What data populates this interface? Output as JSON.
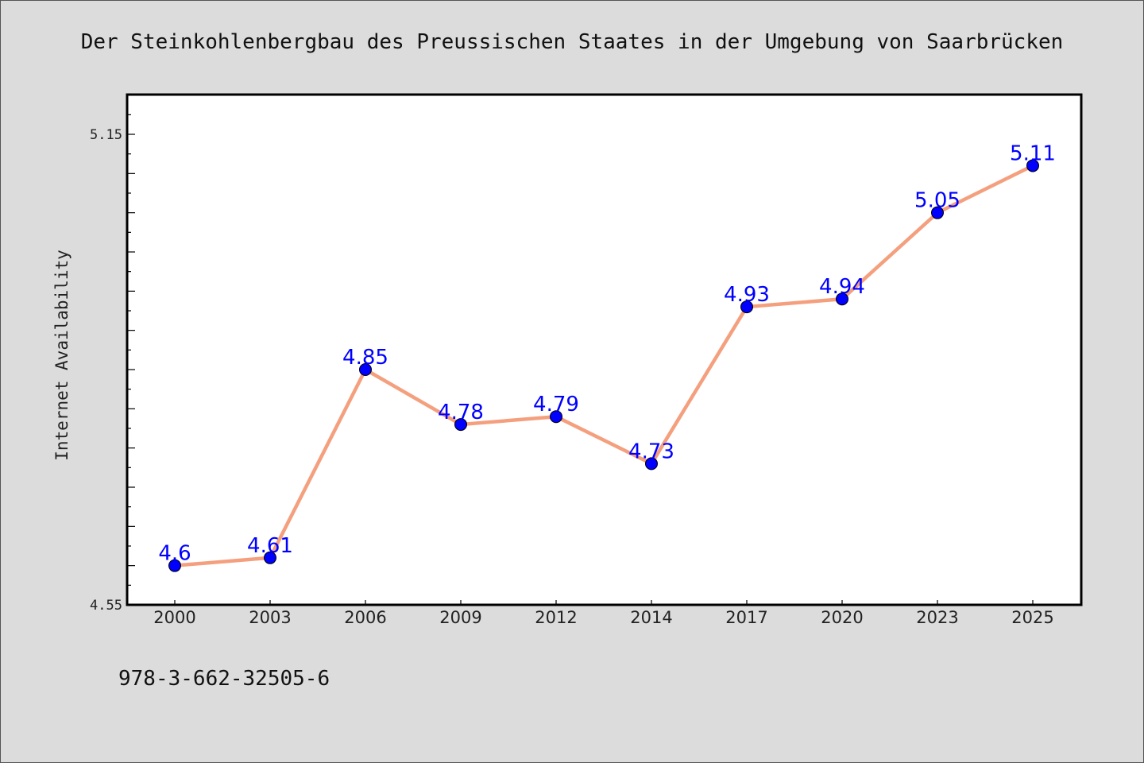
{
  "chart_data": {
    "type": "line",
    "title": "Der Steinkohlenbergbau des Preussischen Staates in der Umgebung von Saarbrücken",
    "xlabel": "",
    "ylabel": "Internet Availability",
    "categories": [
      "2000",
      "2003",
      "2006",
      "2009",
      "2012",
      "2014",
      "2017",
      "2020",
      "2023",
      "2025"
    ],
    "series": [
      {
        "values": [
          4.6,
          4.61,
          4.85,
          4.78,
          4.79,
          4.73,
          4.93,
          4.94,
          5.05,
          5.11
        ]
      }
    ],
    "data_labels": [
      "4.6",
      "4.61",
      "4.85",
      "4.78",
      "4.79",
      "4.73",
      "4.93",
      "4.94",
      "5.05",
      "5.11"
    ],
    "ylim": [
      4.55,
      5.2
    ],
    "y_tick_labels": [
      {
        "value": 4.55,
        "label": "4.55"
      },
      {
        "value": 5.15,
        "label": "5.15"
      }
    ],
    "grid": false,
    "colors": {
      "line": "#f4a07e",
      "marker": "#0000ff",
      "data_label": "#0000ff",
      "background": "#dcdcdc",
      "plot_background": "#ffffff"
    }
  },
  "footer": {
    "isbn": "978-3-662-32505-6"
  }
}
